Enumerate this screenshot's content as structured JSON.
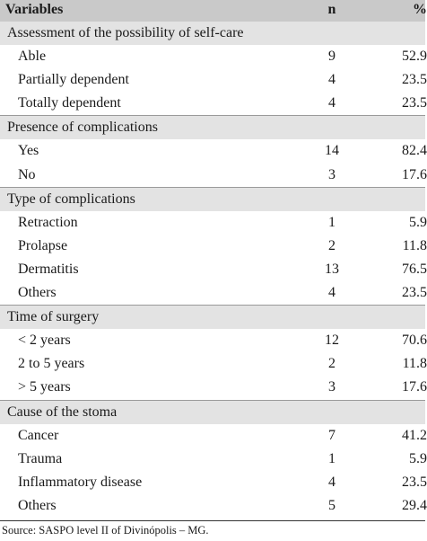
{
  "header": {
    "variables": "Variables",
    "n": "n",
    "percent": "%"
  },
  "sections": [
    {
      "title": "Assessment of the possibility of self-care",
      "rows": [
        {
          "label": "Able",
          "n": "9",
          "pct": "52.9"
        },
        {
          "label": "Partially dependent",
          "n": "4",
          "pct": "23.5"
        },
        {
          "label": "Totally dependent",
          "n": "4",
          "pct": "23.5"
        }
      ]
    },
    {
      "title": "Presence of complications",
      "rows": [
        {
          "label": "Yes",
          "n": "14",
          "pct": "82.4"
        },
        {
          "label": "No",
          "n": "3",
          "pct": "17.6"
        }
      ]
    },
    {
      "title": "Type of complications",
      "rows": [
        {
          "label": "Retraction",
          "n": "1",
          "pct": "5.9"
        },
        {
          "label": "Prolapse",
          "n": "2",
          "pct": "11.8"
        },
        {
          "label": "Dermatitis",
          "n": "13",
          "pct": "76.5"
        },
        {
          "label": "Others",
          "n": "4",
          "pct": "23.5"
        }
      ]
    },
    {
      "title": "Time of surgery",
      "rows": [
        {
          "label": "< 2 years",
          "n": "12",
          "pct": "70.6"
        },
        {
          "label": "2 to 5 years",
          "n": "2",
          "pct": "11.8"
        },
        {
          "label": "> 5 years",
          "n": "3",
          "pct": "17.6"
        }
      ]
    },
    {
      "title": "Cause of the stoma",
      "rows": [
        {
          "label": "Cancer",
          "n": "7",
          "pct": "41.2"
        },
        {
          "label": "Trauma",
          "n": "1",
          "pct": "5.9"
        },
        {
          "label": "Inflammatory disease",
          "n": "4",
          "pct": "23.5"
        },
        {
          "label": "Others",
          "n": "5",
          "pct": "29.4"
        }
      ]
    }
  ],
  "source": "Source: SASPO level II of Divinópolis – MG."
}
